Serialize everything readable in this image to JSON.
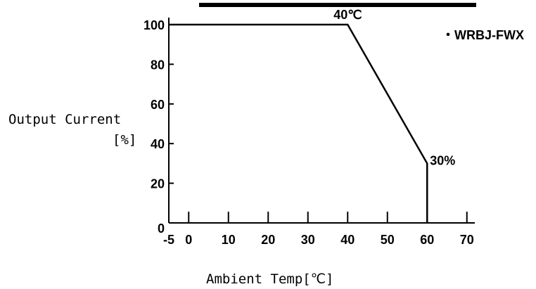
{
  "chart_data": {
    "type": "line",
    "title": "",
    "xlabel": "Ambient Temp[℃]",
    "ylabel_line1": "Output Current",
    "ylabel_line2": "[%]",
    "legend": "・WRBJ-FWX",
    "x_ticks": [
      -5,
      0,
      10,
      20,
      30,
      40,
      50,
      60,
      70
    ],
    "y_ticks": [
      0,
      20,
      40,
      60,
      80,
      100
    ],
    "xlim": [
      -5,
      72
    ],
    "ylim": [
      0,
      100
    ],
    "series": [
      {
        "name": "WRBJ-FWX",
        "points": [
          {
            "x": -5,
            "y": 100
          },
          {
            "x": 40,
            "y": 100
          },
          {
            "x": 60,
            "y": 30
          },
          {
            "x": 60,
            "y": 0
          }
        ]
      }
    ],
    "annotations": [
      {
        "text": "40℃",
        "x": 40,
        "y": 100
      },
      {
        "text": "30%",
        "x": 60,
        "y": 30
      }
    ],
    "grid": false
  }
}
